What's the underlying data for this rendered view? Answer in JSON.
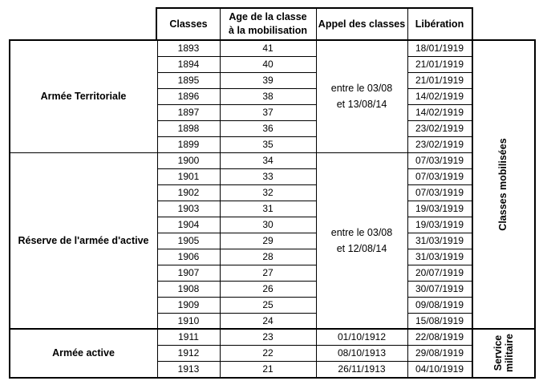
{
  "headers": {
    "classes": "Classes",
    "age_line1": "Age de la classe",
    "age_line2": "à la mobilisation",
    "appel": "Appel des classes",
    "liberation": "Libération"
  },
  "groups": {
    "territoriale": "Armée Territoriale",
    "reserve": "Réserve de l'armée d'active",
    "active": "Armée active"
  },
  "appel": {
    "territoriale_line1": "entre le 03/08",
    "territoriale_line2": "et 13/08/14",
    "reserve_line1": "entre le 03/08",
    "reserve_line2": "et 12/08/14"
  },
  "side_labels": {
    "mobilisees": "Classes mobilisées",
    "service_line1": "Service",
    "service_line2": "militaire"
  },
  "rows": [
    {
      "classe": "1893",
      "age": "41",
      "liberation": "18/01/1919"
    },
    {
      "classe": "1894",
      "age": "40",
      "liberation": "21/01/1919"
    },
    {
      "classe": "1895",
      "age": "39",
      "liberation": "21/01/1919"
    },
    {
      "classe": "1896",
      "age": "38",
      "liberation": "14/02/1919"
    },
    {
      "classe": "1897",
      "age": "37",
      "liberation": "14/02/1919"
    },
    {
      "classe": "1898",
      "age": "36",
      "liberation": "23/02/1919"
    },
    {
      "classe": "1899",
      "age": "35",
      "liberation": "23/02/1919"
    },
    {
      "classe": "1900",
      "age": "34",
      "liberation": "07/03/1919"
    },
    {
      "classe": "1901",
      "age": "33",
      "liberation": "07/03/1919"
    },
    {
      "classe": "1902",
      "age": "32",
      "liberation": "07/03/1919"
    },
    {
      "classe": "1903",
      "age": "31",
      "liberation": "19/03/1919"
    },
    {
      "classe": "1904",
      "age": "30",
      "liberation": "19/03/1919"
    },
    {
      "classe": "1905",
      "age": "29",
      "liberation": "31/03/1919"
    },
    {
      "classe": "1906",
      "age": "28",
      "liberation": "31/03/1919"
    },
    {
      "classe": "1907",
      "age": "27",
      "liberation": "20/07/1919"
    },
    {
      "classe": "1908",
      "age": "26",
      "liberation": "30/07/1919"
    },
    {
      "classe": "1909",
      "age": "25",
      "liberation": "09/08/1919"
    },
    {
      "classe": "1910",
      "age": "24",
      "liberation": "15/08/1919"
    },
    {
      "classe": "1911",
      "age": "23",
      "appel": "01/10/1912",
      "liberation": "22/08/1919"
    },
    {
      "classe": "1912",
      "age": "22",
      "appel": "08/10/1913",
      "liberation": "29/08/1919"
    },
    {
      "classe": "1913",
      "age": "21",
      "appel": "26/11/1913",
      "liberation": "04/10/1919"
    }
  ]
}
